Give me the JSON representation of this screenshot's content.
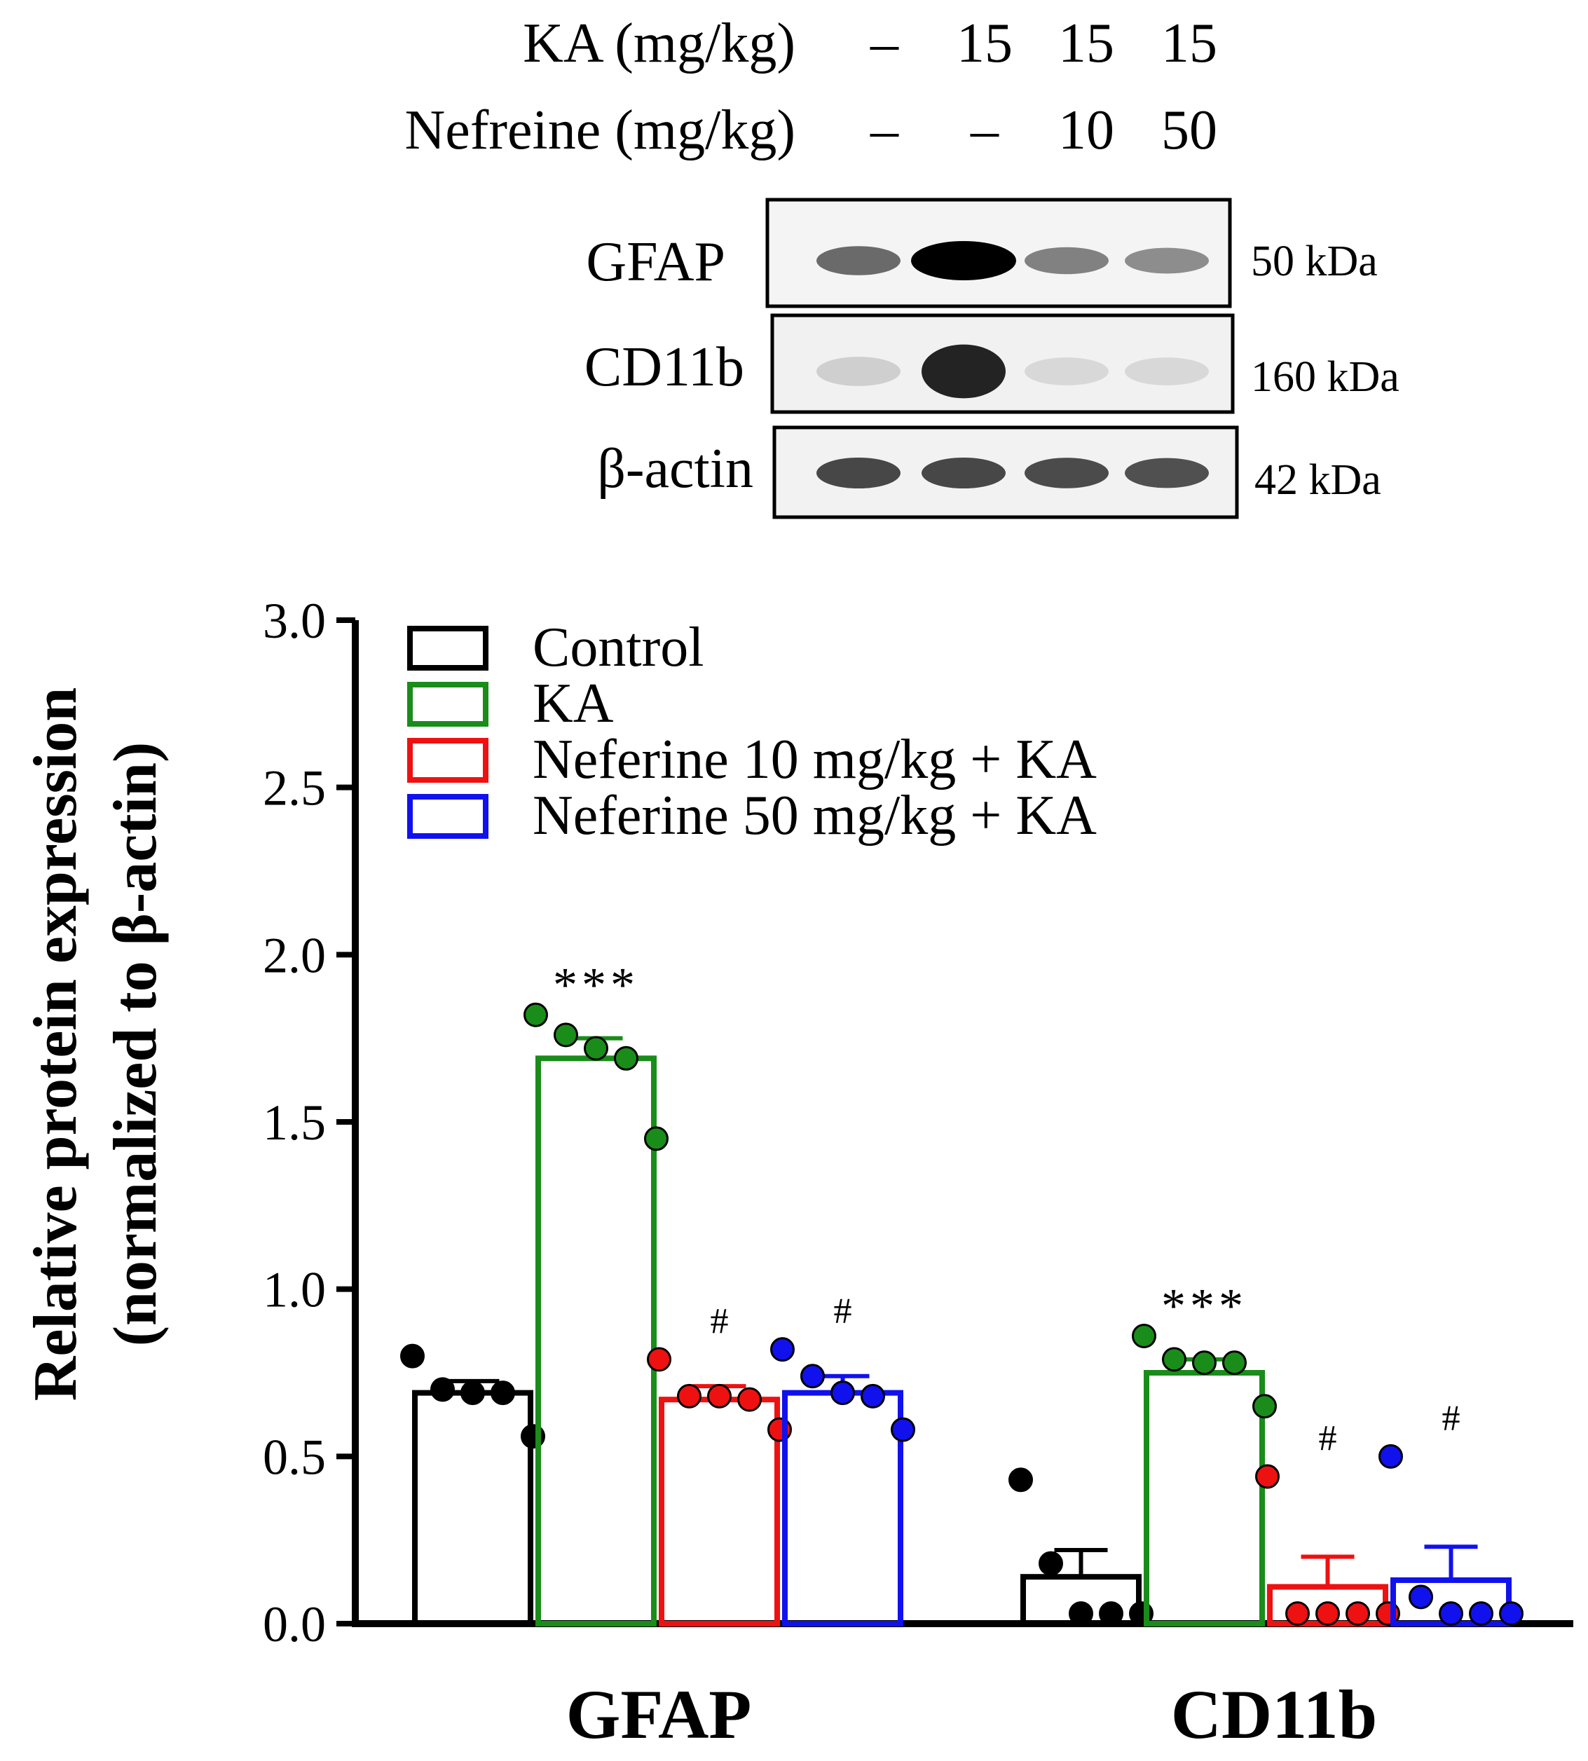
{
  "blot": {
    "ka_label": "KA (mg/kg)",
    "nef_label": "Nefreine (mg/kg)",
    "ka_values": [
      "–",
      "15",
      "15",
      "15"
    ],
    "nef_values": [
      "–",
      "–",
      "10",
      "50"
    ],
    "rows": [
      {
        "name": "GFAP",
        "kda": "50 kDa",
        "intensity": [
          0.55,
          1.0,
          0.45,
          0.4
        ]
      },
      {
        "name": "CD11b",
        "kda": "160 kDa",
        "intensity": [
          0.12,
          0.85,
          0.08,
          0.08
        ]
      },
      {
        "name": "β-actin",
        "kda": "42 kDa",
        "intensity": [
          0.7,
          0.7,
          0.68,
          0.66
        ]
      }
    ]
  },
  "chart_data": {
    "type": "bar",
    "ylabel_line1": "Relative protein expression",
    "ylabel_line2": "(normalized to β-actin)",
    "ylim": [
      0,
      3.0
    ],
    "yticks": [
      "0.0",
      "0.5",
      "1.0",
      "1.5",
      "2.0",
      "2.5",
      "3.0"
    ],
    "ytick_values": [
      0,
      0.5,
      1.0,
      1.5,
      2.0,
      2.5,
      3.0
    ],
    "categories": [
      "GFAP",
      "CD11b"
    ],
    "series": [
      {
        "name": "Control",
        "color": "#000000",
        "values": [
          0.69,
          0.14
        ],
        "err": [
          0.035,
          0.08
        ],
        "points": [
          [
            0.8,
            0.7,
            0.69,
            0.69,
            0.56
          ],
          [
            0.43,
            0.18,
            0.03,
            0.03,
            0.03
          ]
        ],
        "annot": [
          "",
          ""
        ]
      },
      {
        "name": "KA",
        "color": "#1a8c1a",
        "values": [
          1.69,
          0.75
        ],
        "err": [
          0.06,
          0.04
        ],
        "points": [
          [
            1.82,
            1.76,
            1.72,
            1.69,
            1.45
          ],
          [
            0.86,
            0.79,
            0.78,
            0.78,
            0.65
          ]
        ],
        "annot": [
          "***",
          "***"
        ]
      },
      {
        "name": "Neferine 10 mg/kg + KA",
        "color": "#ee1111",
        "values": [
          0.67,
          0.11
        ],
        "err": [
          0.04,
          0.09
        ],
        "points": [
          [
            0.79,
            0.68,
            0.68,
            0.67,
            0.58
          ],
          [
            0.44,
            0.03,
            0.03,
            0.03,
            0.03
          ]
        ],
        "annot": [
          "#",
          "#"
        ]
      },
      {
        "name": "Neferine 50 mg/kg + KA",
        "color": "#1111ee",
        "values": [
          0.69,
          0.13
        ],
        "err": [
          0.05,
          0.1
        ],
        "points": [
          [
            0.82,
            0.74,
            0.69,
            0.68,
            0.58
          ],
          [
            0.5,
            0.08,
            0.03,
            0.03,
            0.03
          ]
        ],
        "annot": [
          "#",
          "#"
        ]
      }
    ],
    "legend": [
      "Control",
      "KA",
      "Neferine 10 mg/kg + KA",
      "Neferine 50 mg/kg + KA"
    ]
  }
}
